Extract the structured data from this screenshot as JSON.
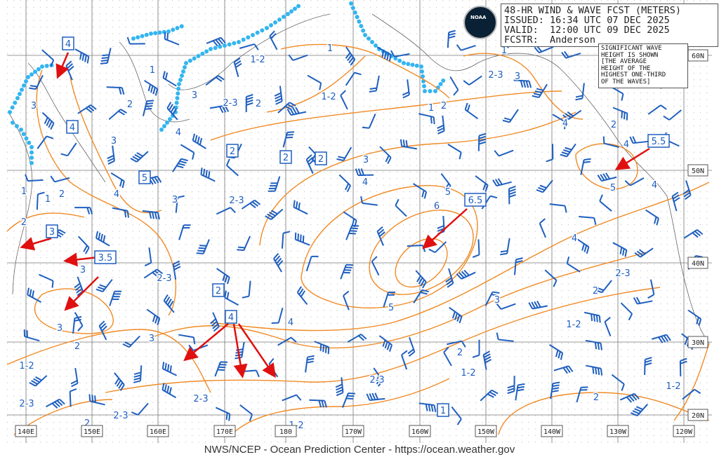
{
  "header": {
    "title": "48-HR WIND & WAVE FCST (METERS)",
    "issued": "ISSUED: 16:34 UTC 07 DEC 2025",
    "valid": "VALID:  12:00 UTC 09 DEC 2025",
    "forecaster": "FCSTR:  Anderson"
  },
  "logo_text": "NOAA",
  "legend_note": "SIGNIFICANT WAVE\nHEIGHT IS SHOWN\n[THE AVERAGE\nHEIGHT OF THE\nHIGHEST ONE-THIRD\nOF THE WAVES]",
  "longitude_labels": [
    "140E",
    "150E",
    "160E",
    "170E",
    "180",
    "170W",
    "160W",
    "150W",
    "140W",
    "130W",
    "120W"
  ],
  "latitude_labels": [
    "60N",
    "50N",
    "40N",
    "30N",
    "20N"
  ],
  "boxed_wave_heights": [
    "4",
    "4",
    "5",
    "2",
    "2",
    "2",
    "3",
    "3.5",
    "2",
    "4",
    "6.5",
    "5.5",
    "1"
  ],
  "contour_labels": [
    "1-2",
    "1",
    "1",
    "3",
    "2",
    "3",
    "2-3",
    "2",
    "1-2",
    "3",
    "4",
    "3",
    "4",
    "1",
    "2",
    "1",
    "2",
    "4",
    "3",
    "2-3",
    "5",
    "6",
    "1",
    "2-3",
    "3",
    "1",
    "2",
    "4",
    "2",
    "4",
    "5",
    "4",
    "4",
    "3",
    "2-3",
    "2-3",
    "2",
    "3",
    "5",
    "4",
    "3",
    "2",
    "3",
    "1-2",
    "1-2",
    "2",
    "1-2",
    "2-3",
    "1-2",
    "2-3",
    "2-3",
    "2-3",
    "2",
    "2",
    "1-2"
  ],
  "colors": {
    "contour": "#f08a24",
    "wind_barb": "#1f5fbf",
    "label": "#1f5fbf",
    "arrow": "#e01010",
    "sea_ice": "#33b5f0",
    "grid": "#777777"
  },
  "footer": "NWS/NCEP - Ocean Prediction Center - https://ocean.weather.gov"
}
